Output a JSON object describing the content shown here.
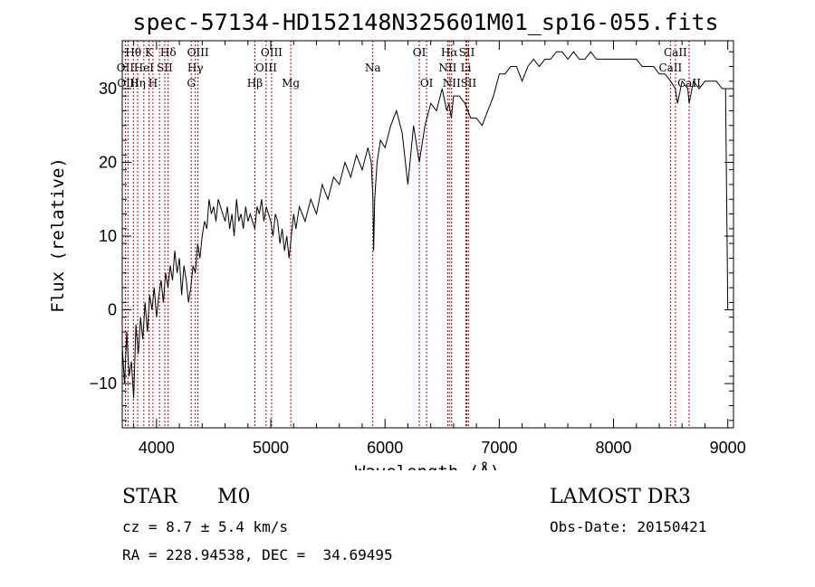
{
  "chart_data": {
    "type": "line",
    "title": "spec-57134-HD152148N325601M01_sp16-055.fits",
    "xlabel": "Wavelength (Å)",
    "ylabel": "Flux (relative)",
    "xlim": [
      3700,
      9050
    ],
    "ylim": [
      -16,
      36.5
    ],
    "xticks": [
      4000,
      5000,
      6000,
      7000,
      8000,
      9000
    ],
    "yticks": [
      -10,
      0,
      10,
      20,
      30
    ],
    "grid": false,
    "series": [
      {
        "color": "#000000",
        "x": [
          3700,
          3720,
          3740,
          3760,
          3780,
          3800,
          3820,
          3840,
          3860,
          3880,
          3900,
          3920,
          3940,
          3960,
          3980,
          4000,
          4020,
          4040,
          4060,
          4080,
          4100,
          4120,
          4140,
          4160,
          4180,
          4200,
          4220,
          4240,
          4260,
          4280,
          4300,
          4320,
          4340,
          4360,
          4380,
          4400,
          4420,
          4440,
          4460,
          4480,
          4500,
          4520,
          4540,
          4560,
          4580,
          4600,
          4620,
          4640,
          4660,
          4680,
          4700,
          4720,
          4740,
          4760,
          4780,
          4800,
          4820,
          4840,
          4860,
          4880,
          4900,
          4920,
          4940,
          4960,
          4980,
          5000,
          5020,
          5040,
          5060,
          5080,
          5100,
          5120,
          5140,
          5160,
          5180,
          5200,
          5220,
          5250,
          5300,
          5350,
          5400,
          5450,
          5500,
          5550,
          5600,
          5650,
          5700,
          5750,
          5800,
          5850,
          5880,
          5895,
          5900,
          5910,
          5930,
          5960,
          6000,
          6050,
          6100,
          6150,
          6200,
          6250,
          6300,
          6350,
          6400,
          6450,
          6500,
          6540,
          6560,
          6580,
          6600,
          6650,
          6700,
          6750,
          6800,
          6850,
          6900,
          6950,
          7000,
          7050,
          7100,
          7150,
          7200,
          7250,
          7300,
          7350,
          7400,
          7450,
          7500,
          7550,
          7600,
          7650,
          7700,
          7750,
          7800,
          7850,
          7900,
          7950,
          8000,
          8050,
          8100,
          8150,
          8200,
          8250,
          8300,
          8350,
          8400,
          8450,
          8500,
          8540,
          8560,
          8600,
          8650,
          8662,
          8700,
          8750,
          8800,
          8850,
          8900,
          8950,
          8980,
          9000
        ],
        "y": [
          -5,
          -10,
          -3,
          -9,
          -7,
          -12,
          -2,
          -6,
          -1,
          -4,
          1,
          -3,
          2,
          0,
          3,
          -1,
          2,
          4,
          1,
          5,
          3,
          6,
          4,
          8,
          5,
          7,
          2,
          6,
          4,
          1,
          3,
          6,
          5,
          9,
          7,
          10,
          12,
          11,
          15,
          13,
          14,
          12,
          15,
          14,
          13,
          12,
          14,
          11,
          13,
          10,
          15,
          12,
          13,
          11,
          14,
          12,
          13,
          12,
          11,
          14,
          13,
          15,
          12,
          14,
          13,
          12,
          10,
          13,
          12,
          9,
          11,
          8,
          10,
          7,
          10,
          13,
          11,
          14,
          12,
          15,
          13,
          17,
          15,
          18,
          17,
          20,
          18,
          21,
          19,
          22,
          20,
          15,
          8,
          15,
          20,
          23,
          22,
          25,
          27,
          24,
          17,
          25,
          20,
          25,
          28,
          27,
          30,
          27,
          28,
          26,
          29,
          29,
          28,
          26,
          26,
          25,
          27,
          29,
          32,
          32,
          33,
          33,
          31,
          33,
          34,
          33,
          34,
          34,
          35,
          35,
          34,
          35,
          34,
          34,
          35,
          34,
          34,
          34,
          34,
          34,
          34,
          34,
          34,
          33,
          33,
          33,
          32,
          32,
          31,
          30,
          28,
          31,
          30,
          28,
          31,
          30,
          31,
          31,
          31,
          30,
          30,
          0
        ]
      }
    ],
    "lines": {
      "color": "#cc0000",
      "wavelengths": [
        3727,
        3750,
        3798,
        3835,
        3889,
        3934,
        3969,
        4026,
        4072,
        4102,
        4304,
        4340,
        4363,
        4861,
        4959,
        5007,
        5175,
        5893,
        6300,
        6364,
        6548,
        6563,
        6583,
        6708,
        6716,
        6731,
        8498,
        8542,
        8662
      ],
      "labels": [
        {
          "text": "Hθ",
          "wl": 3797,
          "row": 0
        },
        {
          "text": "K",
          "wl": 3934,
          "row": 0
        },
        {
          "text": "Hδ",
          "wl": 4102,
          "row": 0
        },
        {
          "text": "OIII",
          "wl": 4363,
          "row": 0
        },
        {
          "text": "OIII",
          "wl": 5007,
          "row": 0
        },
        {
          "text": "OI",
          "wl": 6300,
          "row": 0
        },
        {
          "text": "Hα",
          "wl": 6563,
          "row": 0
        },
        {
          "text": "SII",
          "wl": 6716,
          "row": 0
        },
        {
          "text": "CaII",
          "wl": 8542,
          "row": 0
        },
        {
          "text": "OII",
          "wl": 3727,
          "row": 1
        },
        {
          "text": "HeI",
          "wl": 3889,
          "row": 1
        },
        {
          "text": "SII",
          "wl": 4072,
          "row": 1
        },
        {
          "text": "Hγ",
          "wl": 4340,
          "row": 1
        },
        {
          "text": "OIII",
          "wl": 4959,
          "row": 1
        },
        {
          "text": "Na",
          "wl": 5893,
          "row": 1
        },
        {
          "text": "NII",
          "wl": 6548,
          "row": 1
        },
        {
          "text": "Li",
          "wl": 6708,
          "row": 1
        },
        {
          "text": "CaII",
          "wl": 8498,
          "row": 1
        },
        {
          "text": "OIII",
          "wl": 3750,
          "row": 2
        },
        {
          "text": "Hη",
          "wl": 3835,
          "row": 2
        },
        {
          "text": "H",
          "wl": 3969,
          "row": 2
        },
        {
          "text": "G",
          "wl": 4304,
          "row": 2
        },
        {
          "text": "Hβ",
          "wl": 4861,
          "row": 2
        },
        {
          "text": "Mg",
          "wl": 5175,
          "row": 2
        },
        {
          "text": "OI",
          "wl": 6364,
          "row": 2
        },
        {
          "text": "NII",
          "wl": 6583,
          "row": 2
        },
        {
          "text": "SII",
          "wl": 6731,
          "row": 2
        },
        {
          "text": "CaII",
          "wl": 8662,
          "row": 2
        }
      ]
    }
  },
  "info": {
    "object_class": "STAR",
    "subclass": "M0",
    "survey": "LAMOST DR3",
    "redshift": "cz = 8.7 ± 5.4 km/s",
    "obs_date": "Obs-Date: 20150421",
    "coords": "RA = 228.94538, DEC =  34.69495"
  }
}
